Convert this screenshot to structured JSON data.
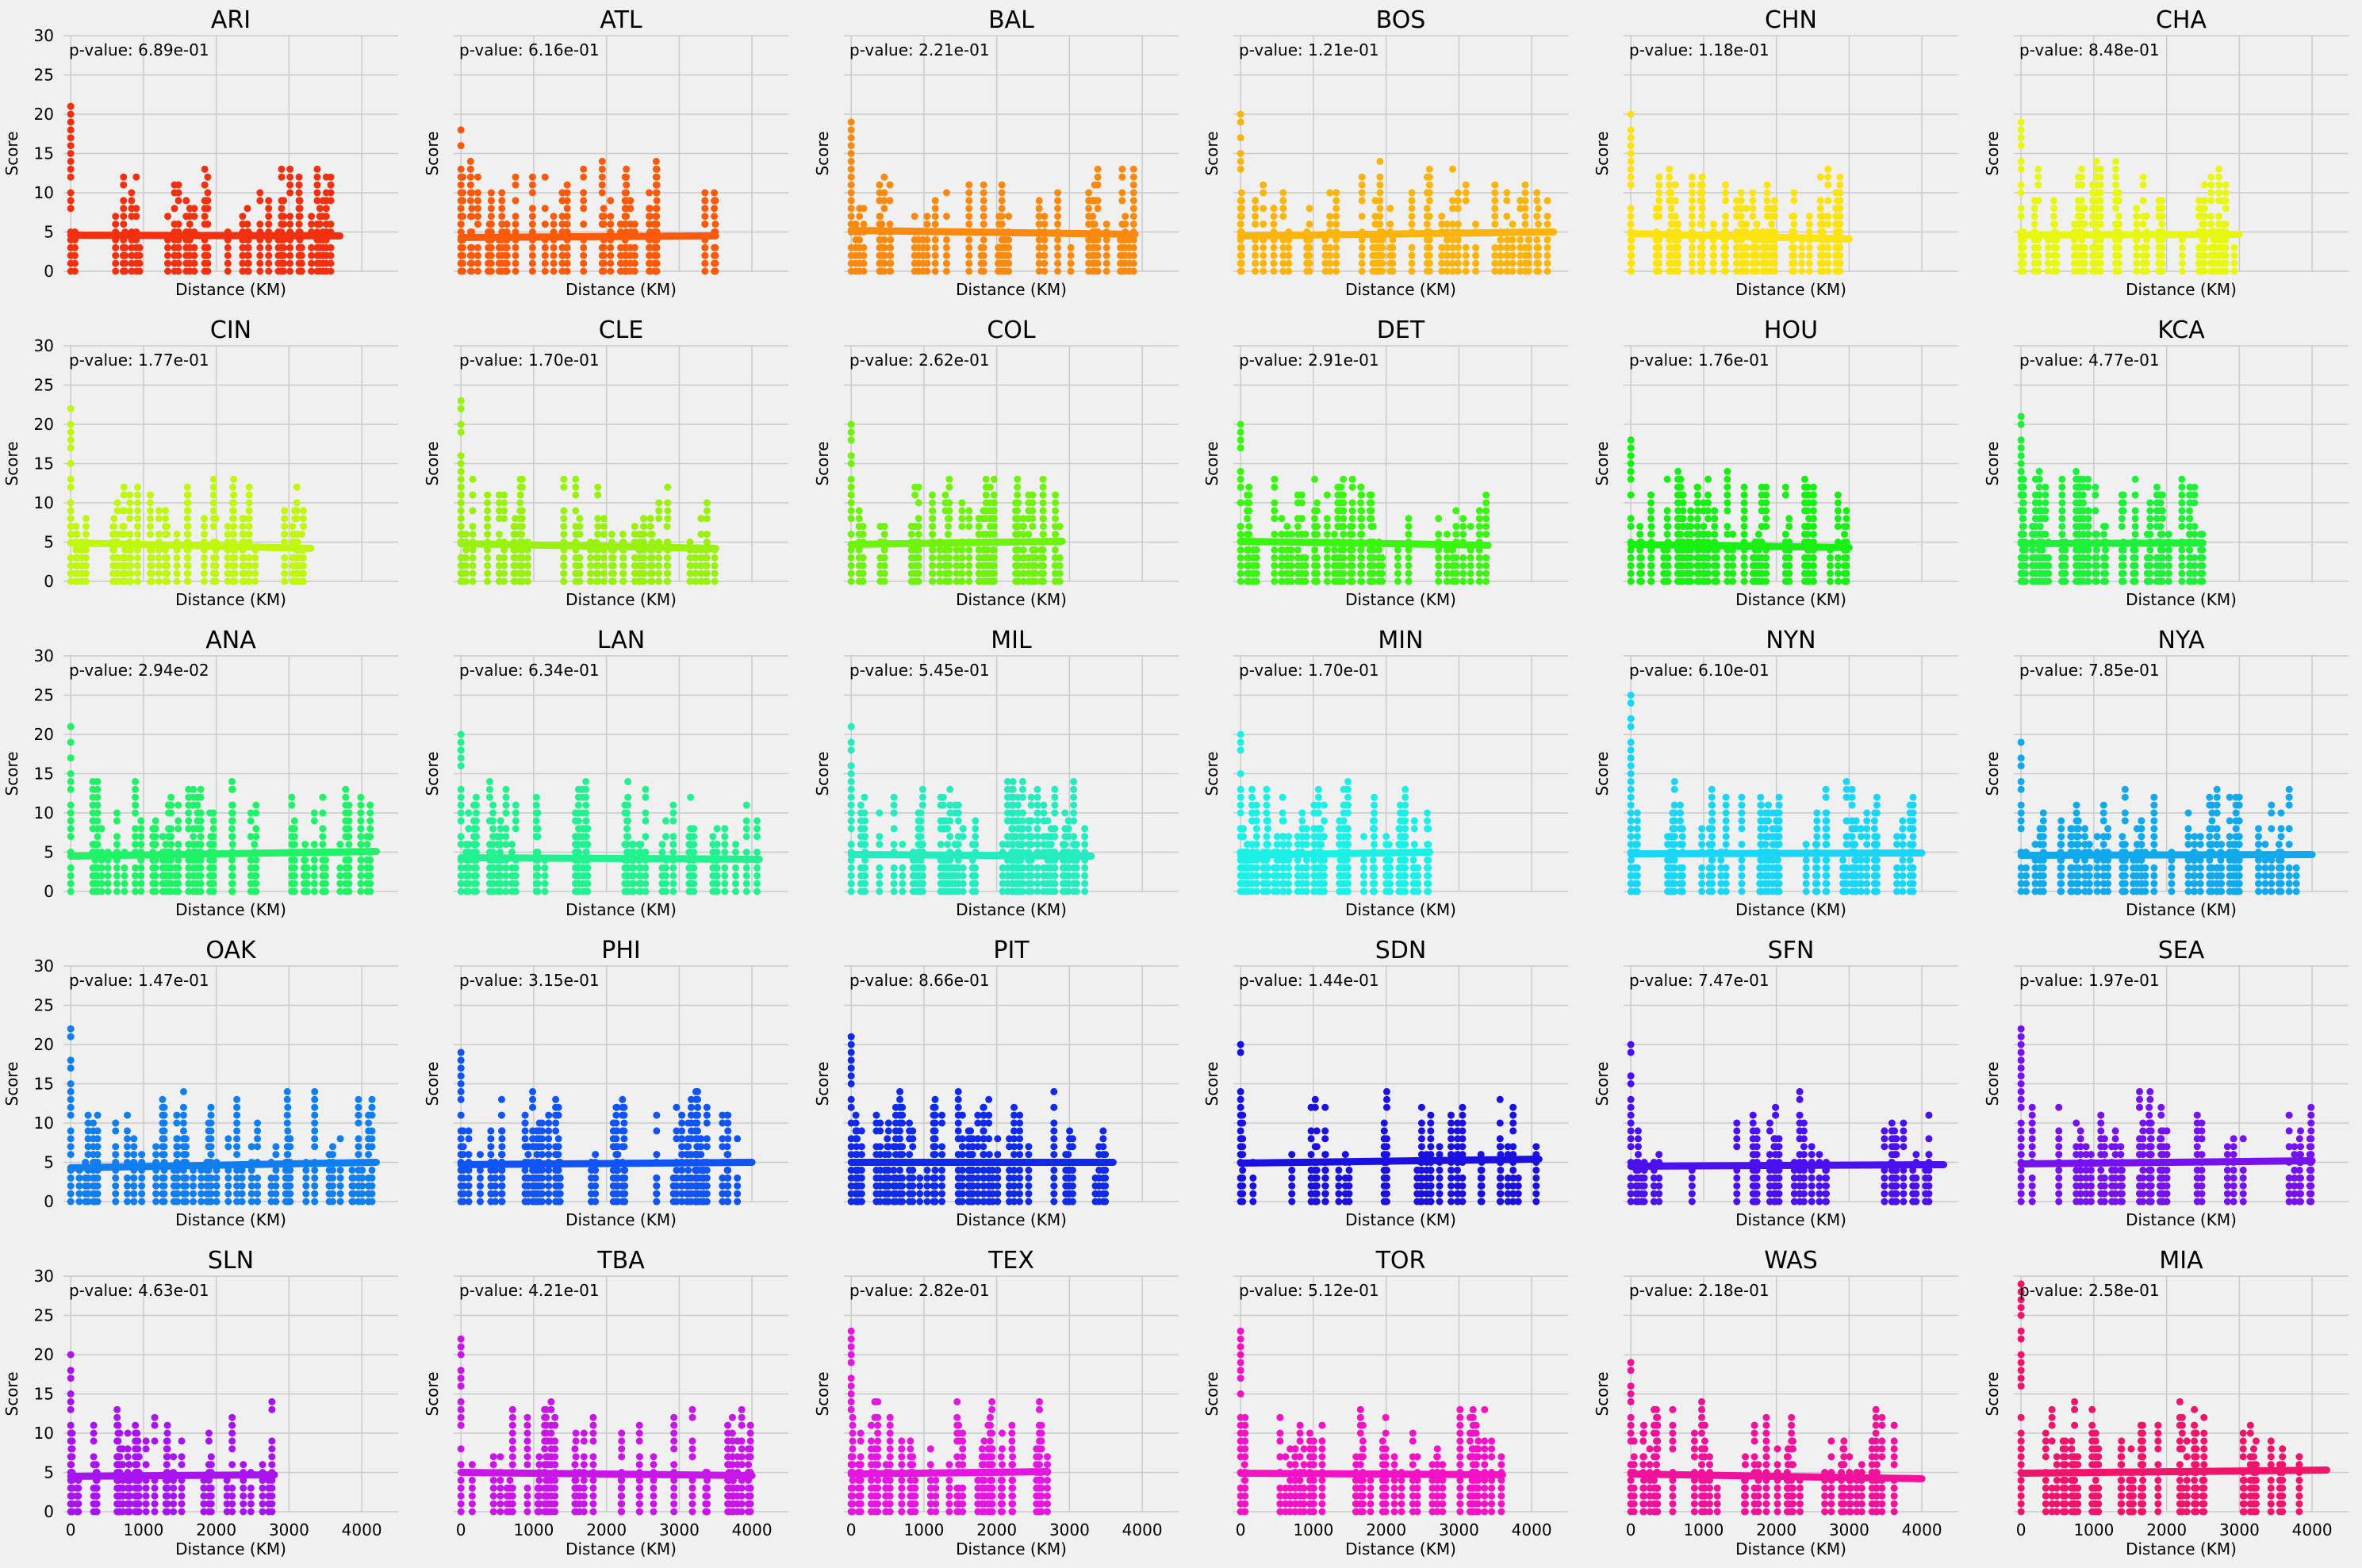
{
  "chart_data": {
    "type": "scatter",
    "layout": "5 rows x 6 columns of small multiples, shared x and y axes",
    "xlabel": "Distance (KM)",
    "ylabel": "Score",
    "xlim": [
      -100,
      4500
    ],
    "ylim": [
      0,
      30
    ],
    "xticks": [
      0,
      1000,
      2000,
      3000,
      4000
    ],
    "yticks": [
      0,
      5,
      10,
      15,
      20,
      25,
      30
    ],
    "x_ticklabels_shown_on": "bottom row only",
    "y_ticklabels_shown_on": "left column only",
    "grid": true,
    "regression_line": true,
    "panels": [
      {
        "team": "ARI",
        "p_value": "p-value: 6.89e-01",
        "color": "#f2300f",
        "x_range": [
          0,
          3700
        ],
        "max_score": 22,
        "trend": [
          4.6,
          4.5
        ]
      },
      {
        "team": "ATL",
        "p_value": "p-value: 6.16e-01",
        "color": "#fa5a0a",
        "x_range": [
          0,
          3500
        ],
        "max_score": 18,
        "trend": [
          4.3,
          4.5
        ]
      },
      {
        "team": "BAL",
        "p_value": "p-value: 2.21e-01",
        "color": "#fa8a0f",
        "x_range": [
          0,
          3900
        ],
        "max_score": 19,
        "trend": [
          5.2,
          4.7
        ]
      },
      {
        "team": "BOS",
        "p_value": "p-value: 1.21e-01",
        "color": "#fbb40d",
        "x_range": [
          0,
          4300
        ],
        "max_score": 20,
        "trend": [
          4.5,
          5.0
        ]
      },
      {
        "team": "CHN",
        "p_value": "p-value: 1.18e-01",
        "color": "#fce20f",
        "x_range": [
          0,
          3000
        ],
        "max_score": 20,
        "trend": [
          4.8,
          4.1
        ]
      },
      {
        "team": "CHA",
        "p_value": "p-value: 8.48e-01",
        "color": "#e8f712",
        "x_range": [
          0,
          3000
        ],
        "max_score": 19,
        "trend": [
          4.6,
          4.7
        ]
      },
      {
        "team": "CIN",
        "p_value": "p-value: 1.77e-01",
        "color": "#bff70f",
        "x_range": [
          0,
          3300
        ],
        "max_score": 22,
        "trend": [
          4.9,
          4.2
        ]
      },
      {
        "team": "CLE",
        "p_value": "p-value: 1.70e-01",
        "color": "#98f20d",
        "x_range": [
          0,
          3500
        ],
        "max_score": 23,
        "trend": [
          4.8,
          4.2
        ]
      },
      {
        "team": "COL",
        "p_value": "p-value: 2.62e-01",
        "color": "#6ff20c",
        "x_range": [
          0,
          2900
        ],
        "max_score": 20,
        "trend": [
          4.7,
          5.1
        ]
      },
      {
        "team": "DET",
        "p_value": "p-value: 2.91e-01",
        "color": "#3af510",
        "x_range": [
          0,
          3400
        ],
        "max_score": 20,
        "trend": [
          5.1,
          4.6
        ]
      },
      {
        "team": "HOU",
        "p_value": "p-value: 1.76e-01",
        "color": "#17f012",
        "x_range": [
          0,
          3000
        ],
        "max_score": 18,
        "trend": [
          4.7,
          4.3
        ]
      },
      {
        "team": "KCA",
        "p_value": "p-value: 4.77e-01",
        "color": "#1ef03a",
        "x_range": [
          0,
          2500
        ],
        "max_score": 21,
        "trend": [
          4.8,
          4.9
        ]
      },
      {
        "team": "ANA",
        "p_value": "p-value: 2.94e-02",
        "color": "#1ff266",
        "x_range": [
          0,
          4200
        ],
        "max_score": 21,
        "trend": [
          4.5,
          5.1
        ]
      },
      {
        "team": "LAN",
        "p_value": "p-value: 6.34e-01",
        "color": "#22f190",
        "x_range": [
          0,
          4100
        ],
        "max_score": 20,
        "trend": [
          4.3,
          4.1
        ]
      },
      {
        "team": "MIL",
        "p_value": "p-value: 5.45e-01",
        "color": "#25ecbe",
        "x_range": [
          0,
          3300
        ],
        "max_score": 21,
        "trend": [
          4.7,
          4.5
        ]
      },
      {
        "team": "MIN",
        "p_value": "p-value: 1.70e-01",
        "color": "#1af0e6",
        "x_range": [
          0,
          2600
        ],
        "max_score": 20,
        "trend": [
          4.6,
          5.0
        ]
      },
      {
        "team": "NYN",
        "p_value": "p-value: 6.10e-01",
        "color": "#1ad6f6",
        "x_range": [
          0,
          4000
        ],
        "max_score": 25,
        "trend": [
          4.8,
          4.9
        ]
      },
      {
        "team": "NYA",
        "p_value": "p-value: 7.85e-01",
        "color": "#11a9ec",
        "x_range": [
          0,
          4000
        ],
        "max_score": 19,
        "trend": [
          4.6,
          4.7
        ]
      },
      {
        "team": "OAK",
        "p_value": "p-value: 1.47e-01",
        "color": "#117ef0",
        "x_range": [
          0,
          4200
        ],
        "max_score": 22,
        "trend": [
          4.3,
          5.0
        ]
      },
      {
        "team": "PHI",
        "p_value": "p-value: 3.15e-01",
        "color": "#1154f5",
        "x_range": [
          0,
          4000
        ],
        "max_score": 19,
        "trend": [
          4.7,
          5.0
        ]
      },
      {
        "team": "PIT",
        "p_value": "p-value: 8.66e-01",
        "color": "#0f2ae8",
        "x_range": [
          0,
          3600
        ],
        "max_score": 21,
        "trend": [
          5.0,
          5.0
        ]
      },
      {
        "team": "SDN",
        "p_value": "p-value: 1.44e-01",
        "color": "#1a10e0",
        "x_range": [
          0,
          4100
        ],
        "max_score": 20,
        "trend": [
          4.9,
          5.4
        ]
      },
      {
        "team": "SFN",
        "p_value": "p-value: 7.47e-01",
        "color": "#4a10f0",
        "x_range": [
          0,
          4300
        ],
        "max_score": 20,
        "trend": [
          4.5,
          4.7
        ]
      },
      {
        "team": "SEA",
        "p_value": "p-value: 1.97e-01",
        "color": "#7611f0",
        "x_range": [
          0,
          4000
        ],
        "max_score": 22,
        "trend": [
          4.8,
          5.2
        ]
      },
      {
        "team": "SLN",
        "p_value": "p-value: 4.63e-01",
        "color": "#a714f0",
        "x_range": [
          0,
          2800
        ],
        "max_score": 20,
        "trend": [
          4.5,
          4.7
        ]
      },
      {
        "team": "TBA",
        "p_value": "p-value: 4.21e-01",
        "color": "#c815e8",
        "x_range": [
          0,
          4000
        ],
        "max_score": 22,
        "trend": [
          5.0,
          4.6
        ]
      },
      {
        "team": "TEX",
        "p_value": "p-value: 2.82e-01",
        "color": "#e416e0",
        "x_range": [
          0,
          2700
        ],
        "max_score": 23,
        "trend": [
          4.8,
          5.1
        ]
      },
      {
        "team": "TOR",
        "p_value": "p-value: 5.12e-01",
        "color": "#f512c4",
        "x_range": [
          0,
          3600
        ],
        "max_score": 23,
        "trend": [
          4.9,
          4.7
        ]
      },
      {
        "team": "WAS",
        "p_value": "p-value: 2.18e-01",
        "color": "#f0129a",
        "x_range": [
          0,
          4000
        ],
        "max_score": 19,
        "trend": [
          4.8,
          4.2
        ]
      },
      {
        "team": "MIA",
        "p_value": "p-value: 2.58e-01",
        "color": "#f0146a",
        "x_range": [
          0,
          4200
        ],
        "max_score": 29,
        "trend": [
          4.9,
          5.3
        ]
      }
    ]
  }
}
